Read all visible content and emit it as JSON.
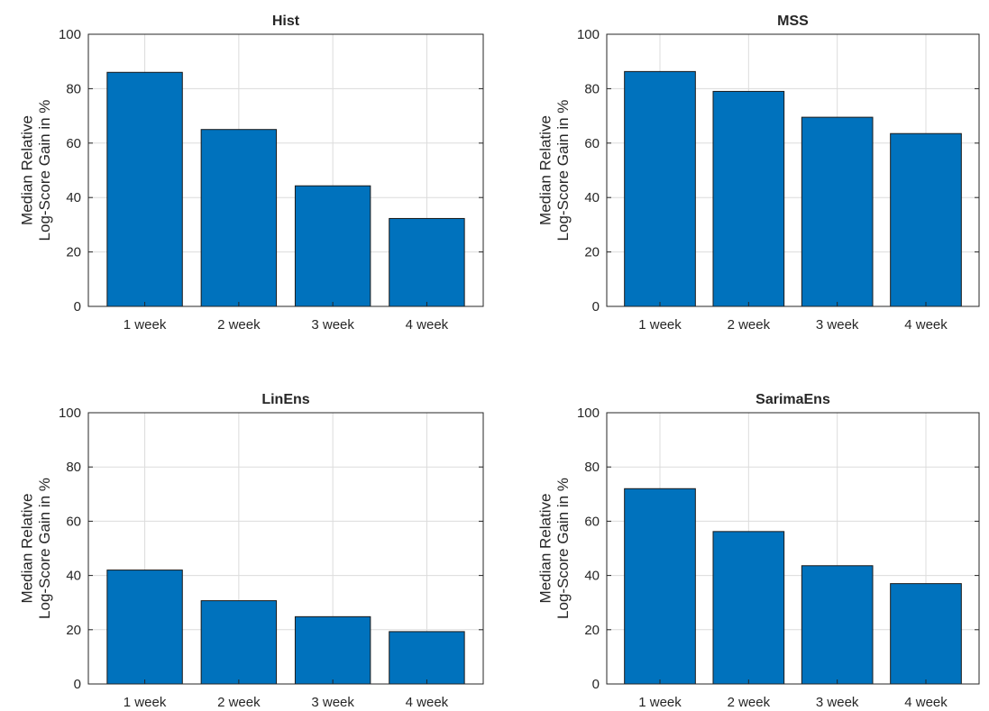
{
  "colors": {
    "bar": "#0072bd"
  },
  "chart_data": [
    {
      "type": "bar",
      "title": "Hist",
      "ylabel_lines": [
        "Median Relative",
        "Log-Score Gain in %"
      ],
      "categories": [
        "1 week",
        "2 week",
        "3 week",
        "4 week"
      ],
      "values": [
        86,
        65,
        44.3,
        32.3
      ],
      "ylim": [
        0,
        100
      ],
      "yticks": [
        0,
        20,
        40,
        60,
        80,
        100
      ],
      "grid": true
    },
    {
      "type": "bar",
      "title": "MSS",
      "ylabel_lines": [
        "Median Relative",
        "Log-Score Gain in %"
      ],
      "categories": [
        "1 week",
        "2 week",
        "3 week",
        "4 week"
      ],
      "values": [
        86.3,
        79,
        69.5,
        63.5
      ],
      "ylim": [
        0,
        100
      ],
      "yticks": [
        0,
        20,
        40,
        60,
        80,
        100
      ],
      "grid": true
    },
    {
      "type": "bar",
      "title": "LinEns",
      "ylabel_lines": [
        "Median Relative",
        "Log-Score Gain in %"
      ],
      "categories": [
        "1 week",
        "2 week",
        "3 week",
        "4 week"
      ],
      "values": [
        42,
        30.7,
        24.8,
        19.3
      ],
      "ylim": [
        0,
        100
      ],
      "yticks": [
        0,
        20,
        40,
        60,
        80,
        100
      ],
      "grid": true
    },
    {
      "type": "bar",
      "title": "SarimaEns",
      "ylabel_lines": [
        "Median Relative",
        "Log-Score Gain in %"
      ],
      "categories": [
        "1 week",
        "2 week",
        "3 week",
        "4 week"
      ],
      "values": [
        72,
        56.2,
        43.6,
        37
      ],
      "ylim": [
        0,
        100
      ],
      "yticks": [
        0,
        20,
        40,
        60,
        80,
        100
      ],
      "grid": true
    }
  ]
}
